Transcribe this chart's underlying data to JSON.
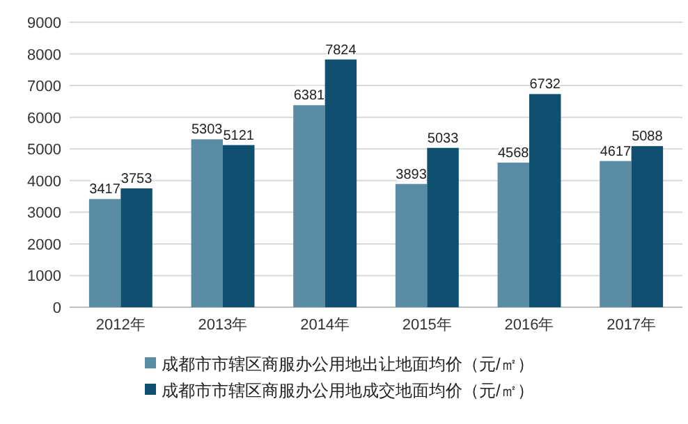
{
  "chart_data": {
    "type": "bar",
    "categories": [
      "2012年",
      "2013年",
      "2014年",
      "2015年",
      "2016年",
      "2017年"
    ],
    "series": [
      {
        "name": "成都市市辖区商服办公用地出让地面均价（元/㎡）",
        "color": "#5b8ca6",
        "values": [
          3417,
          5303,
          6381,
          3893,
          4568,
          4617
        ]
      },
      {
        "name": "成都市市辖区商服办公用地成交地面均价（元/㎡）",
        "color": "#0f5070",
        "values": [
          3753,
          5121,
          7824,
          5033,
          6732,
          5088
        ]
      }
    ],
    "ylim": [
      0,
      9000
    ],
    "yticks": [
      0,
      1000,
      2000,
      3000,
      4000,
      5000,
      6000,
      7000,
      8000,
      9000
    ],
    "grid": "y",
    "legend": "bottom",
    "data_labels": true
  }
}
